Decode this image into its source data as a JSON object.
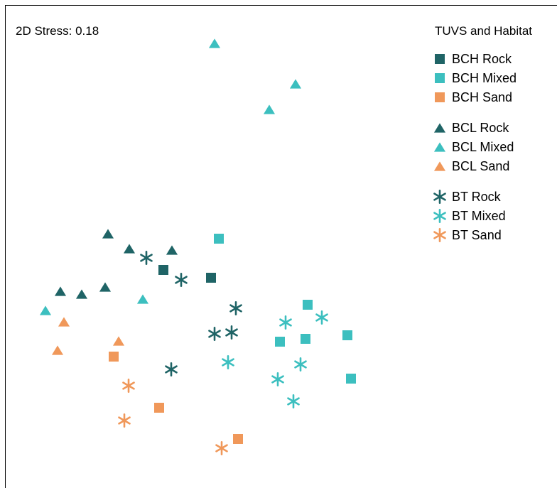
{
  "chart_data": {
    "type": "scatter",
    "annotation": "2D Stress: 0.18",
    "legend_title": "TUVS and Habitat",
    "legend_position": "top-right",
    "axes": "none",
    "grid": false,
    "colors": {
      "Rock": "#1f6466",
      "Mixed": "#3cbfbf",
      "Sand": "#f0985a"
    },
    "series": [
      {
        "name": "BCH Rock",
        "marker": "square",
        "habitat": "Rock",
        "points": [
          [
            230,
            380
          ],
          [
            297,
            391
          ]
        ]
      },
      {
        "name": "BCH Mixed",
        "marker": "square",
        "habitat": "Mixed",
        "points": [
          [
            308,
            336
          ],
          [
            433,
            429
          ],
          [
            394,
            481
          ],
          [
            430,
            477
          ],
          [
            489,
            472
          ],
          [
            494,
            533
          ]
        ]
      },
      {
        "name": "BCH Sand",
        "marker": "square",
        "habitat": "Sand",
        "points": [
          [
            160,
            502
          ],
          [
            224,
            574
          ],
          [
            335,
            618
          ]
        ]
      },
      {
        "name": "BCL Rock",
        "marker": "triangle",
        "habitat": "Rock",
        "points": [
          [
            152,
            329
          ],
          [
            182,
            350
          ],
          [
            242,
            352
          ],
          [
            85,
            410
          ],
          [
            115,
            414
          ],
          [
            148,
            404
          ]
        ]
      },
      {
        "name": "BCL Mixed",
        "marker": "triangle",
        "habitat": "Mixed",
        "points": [
          [
            302,
            61
          ],
          [
            416,
            118
          ],
          [
            379,
            154
          ],
          [
            201,
            421
          ],
          [
            64,
            437
          ]
        ]
      },
      {
        "name": "BCL Sand",
        "marker": "triangle",
        "habitat": "Sand",
        "points": [
          [
            90,
            453
          ],
          [
            167,
            480
          ],
          [
            81,
            493
          ]
        ]
      },
      {
        "name": "BT Rock",
        "marker": "asterisk",
        "habitat": "Rock",
        "points": [
          [
            206,
            363
          ],
          [
            255,
            394
          ],
          [
            332,
            434
          ],
          [
            302,
            470
          ],
          [
            326,
            468
          ],
          [
            241,
            520
          ]
        ]
      },
      {
        "name": "BT Mixed",
        "marker": "asterisk",
        "habitat": "Mixed",
        "points": [
          [
            402,
            454
          ],
          [
            453,
            447
          ],
          [
            321,
            510
          ],
          [
            423,
            513
          ],
          [
            391,
            534
          ],
          [
            413,
            565
          ]
        ]
      },
      {
        "name": "BT Sand",
        "marker": "asterisk",
        "habitat": "Sand",
        "points": [
          [
            181,
            543
          ],
          [
            175,
            592
          ],
          [
            312,
            631
          ]
        ]
      }
    ],
    "legend_groups": [
      [
        "BCH Rock",
        "BCH Mixed",
        "BCH Sand"
      ],
      [
        "BCL Rock",
        "BCL Mixed",
        "BCL Sand"
      ],
      [
        "BT Rock",
        "BT Mixed",
        "BT Sand"
      ]
    ]
  }
}
